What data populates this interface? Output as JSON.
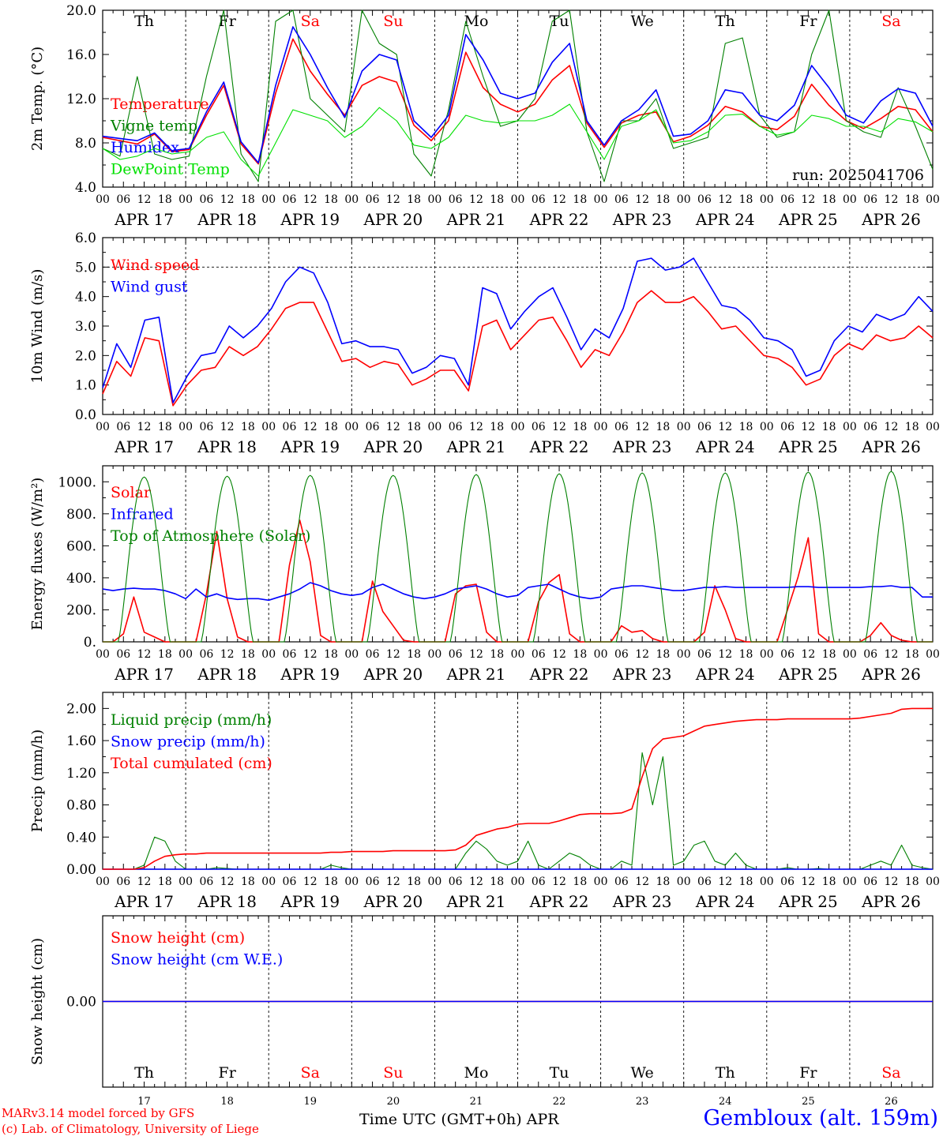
{
  "meta": {
    "run_label": "run: 2025041706",
    "model_line": "MARv3.14 model forced by GFS",
    "credit_line": "(c) Lab. of Climatology, University of Liege",
    "station": "Gembloux (alt. 159m)",
    "xaxis_label": "Time UTC (GMT+0h) APR",
    "colors": {
      "red": "#ff0000",
      "green": "#008000",
      "blue": "#0000ff",
      "lightgreen": "#00e000",
      "frame": "#000000"
    }
  },
  "days": {
    "weekday": [
      "Th",
      "Fr",
      "Sa",
      "Su",
      "Mo",
      "Tu",
      "We",
      "Th",
      "Fr",
      "Sa"
    ],
    "weekend": [
      false,
      false,
      true,
      true,
      false,
      false,
      false,
      false,
      false,
      true
    ],
    "date_label": [
      "APR 17",
      "APR 18",
      "APR 19",
      "APR 20",
      "APR 21",
      "APR 22",
      "APR 23",
      "APR 24",
      "APR 25",
      "APR 26"
    ],
    "day_number": [
      "17",
      "18",
      "19",
      "20",
      "21",
      "22",
      "23",
      "24",
      "25",
      "26"
    ],
    "hour_ticks": [
      "00",
      "06",
      "12",
      "18"
    ],
    "end_tick": "00"
  },
  "chart_data": [
    {
      "id": "temp",
      "type": "line",
      "ylabel": "2m Temp. (°C)",
      "ylim": [
        4,
        20
      ],
      "yticks": [
        4,
        8,
        12,
        16,
        20
      ],
      "ytick_labels": [
        "4.0",
        "8.0",
        "12.0",
        "16.0",
        "20.0"
      ],
      "x_hours_start": 0,
      "x_hours_end": 240,
      "x_step_hours": 6,
      "show_weekdays": true,
      "show_run": true,
      "series": [
        {
          "name": "Temperature",
          "color": "red",
          "values": [
            8.5,
            8.2,
            7.9,
            8.8,
            7.2,
            7.4,
            10.5,
            13.2,
            7.9,
            6.1,
            12.5,
            17.4,
            14.5,
            12.4,
            10.5,
            13.2,
            14.0,
            13.5,
            9.6,
            8.2,
            10.0,
            16.2,
            13.0,
            11.5,
            10.8,
            11.5,
            13.7,
            15.0,
            9.8,
            7.6,
            9.8,
            10.5,
            10.8,
            8.1,
            8.6,
            9.6,
            11.3,
            10.8,
            9.5,
            9.2,
            10.4,
            13.3,
            11.4,
            10.0,
            9.3,
            10.2,
            11.3,
            11.0,
            9.0
          ]
        },
        {
          "name": "Vigne temp",
          "color": "green",
          "values": [
            7.5,
            6.8,
            14.0,
            7.0,
            6.5,
            6.8,
            14.0,
            22.0,
            7.0,
            4.5,
            19.0,
            21.0,
            12.0,
            10.5,
            9.0,
            20.0,
            17.0,
            16.0,
            7.0,
            5.0,
            11.0,
            19.0,
            14.0,
            9.5,
            10.0,
            12.0,
            19.0,
            21.0,
            9.0,
            4.5,
            10.0,
            10.0,
            12.0,
            7.5,
            8.0,
            8.5,
            17.0,
            17.5,
            10.5,
            8.5,
            9.0,
            16.0,
            20.0,
            10.0,
            9.0,
            8.5,
            13.0,
            9.5,
            5.6
          ]
        },
        {
          "name": "Humidex",
          "color": "blue",
          "values": [
            8.6,
            8.4,
            8.2,
            8.9,
            7.3,
            7.5,
            10.8,
            13.5,
            8.1,
            6.2,
            13.2,
            18.5,
            16.0,
            13.0,
            10.3,
            14.5,
            16.0,
            15.5,
            10.0,
            8.5,
            10.5,
            17.8,
            15.5,
            12.5,
            12.0,
            12.5,
            15.3,
            17.0,
            10.0,
            7.8,
            10.0,
            11.0,
            12.8,
            8.6,
            8.8,
            10.0,
            12.8,
            12.5,
            10.5,
            10.0,
            11.4,
            15.0,
            13.0,
            10.5,
            9.8,
            11.8,
            12.9,
            12.5,
            9.5
          ]
        },
        {
          "name": "DewPoint Temp",
          "color": "lightgreen",
          "values": [
            7.5,
            6.5,
            6.8,
            7.5,
            7.0,
            7.2,
            8.5,
            9.0,
            6.5,
            5.0,
            8.0,
            11.0,
            10.5,
            10.0,
            8.5,
            9.5,
            11.2,
            10.0,
            7.8,
            7.5,
            8.5,
            10.5,
            10.0,
            9.8,
            10.0,
            10.0,
            10.5,
            11.5,
            9.0,
            6.5,
            9.5,
            10.0,
            11.0,
            8.0,
            8.2,
            9.0,
            10.5,
            10.6,
            9.5,
            8.7,
            9.0,
            10.5,
            10.2,
            9.5,
            9.5,
            9.0,
            10.2,
            9.9,
            9.0
          ]
        }
      ]
    },
    {
      "id": "wind",
      "type": "line",
      "ylabel": "10m Wind (m/s)",
      "ylim": [
        0,
        6
      ],
      "yticks": [
        0,
        1,
        2,
        3,
        4,
        5,
        6
      ],
      "ytick_labels": [
        "0.0",
        "1.0",
        "2.0",
        "3.0",
        "4.0",
        "5.0",
        "6.0"
      ],
      "ref_line": 5,
      "x_hours_start": 0,
      "x_hours_end": 240,
      "x_step_hours": 6,
      "series": [
        {
          "name": "Wind speed",
          "color": "red",
          "values": [
            0.7,
            1.8,
            1.3,
            2.6,
            2.5,
            0.3,
            1.0,
            1.5,
            1.6,
            2.3,
            2.0,
            2.3,
            2.9,
            3.6,
            3.8,
            3.8,
            2.8,
            1.8,
            1.9,
            1.6,
            1.8,
            1.7,
            1.0,
            1.2,
            1.5,
            1.5,
            0.8,
            3.0,
            3.2,
            2.2,
            2.7,
            3.2,
            3.3,
            2.5,
            1.6,
            2.2,
            2.0,
            2.8,
            3.8,
            4.2,
            3.8,
            3.8,
            4.0,
            3.5,
            2.9,
            3.0,
            2.5,
            2.0,
            1.9,
            1.6,
            1.0,
            1.2,
            2.0,
            2.4,
            2.2,
            2.7,
            2.5,
            2.6,
            3.0,
            2.6
          ]
        },
        {
          "name": "Wind gust",
          "color": "blue",
          "values": [
            0.9,
            2.4,
            1.6,
            3.2,
            3.3,
            0.4,
            1.3,
            2.0,
            2.1,
            3.0,
            2.6,
            3.0,
            3.6,
            4.5,
            5.0,
            4.8,
            3.8,
            2.4,
            2.5,
            2.3,
            2.3,
            2.2,
            1.4,
            1.6,
            2.0,
            1.9,
            1.0,
            4.3,
            4.1,
            2.9,
            3.5,
            4.0,
            4.3,
            3.3,
            2.2,
            2.9,
            2.6,
            3.6,
            5.2,
            5.3,
            4.9,
            5.0,
            5.3,
            4.5,
            3.7,
            3.6,
            3.2,
            2.6,
            2.5,
            2.2,
            1.3,
            1.5,
            2.5,
            3.0,
            2.8,
            3.4,
            3.2,
            3.4,
            4.0,
            3.5
          ]
        }
      ]
    },
    {
      "id": "energy",
      "type": "line",
      "ylabel": "Energy fluxes (W/m²)",
      "ylim": [
        0,
        1100
      ],
      "yticks": [
        0,
        200,
        400,
        600,
        800,
        1000
      ],
      "ytick_labels": [
        "0.",
        "200.",
        "400.",
        "600.",
        "800.",
        "1000."
      ],
      "x_hours_start": 0,
      "x_hours_end": 240,
      "x_step_hours": 3,
      "series": [
        {
          "name": "Solar",
          "color": "red",
          "values": [
            0,
            0,
            50,
            280,
            60,
            30,
            0,
            0,
            0,
            0,
            300,
            690,
            270,
            30,
            0,
            0,
            0,
            0,
            480,
            760,
            500,
            40,
            0,
            0,
            0,
            0,
            380,
            190,
            100,
            10,
            0,
            0,
            0,
            0,
            300,
            350,
            360,
            60,
            0,
            0,
            0,
            0,
            250,
            370,
            420,
            50,
            0,
            0,
            0,
            0,
            100,
            60,
            70,
            20,
            0,
            0,
            0,
            0,
            60,
            350,
            200,
            20,
            0,
            0,
            0,
            0,
            200,
            400,
            650,
            50,
            0,
            0,
            0,
            0,
            40,
            120,
            40,
            10,
            0,
            0,
            0
          ]
        },
        {
          "name": "Infrared",
          "color": "blue",
          "values": [
            330,
            320,
            330,
            335,
            330,
            330,
            320,
            300,
            270,
            330,
            280,
            300,
            275,
            265,
            270,
            270,
            260,
            280,
            300,
            330,
            370,
            350,
            320,
            300,
            290,
            300,
            340,
            360,
            330,
            300,
            280,
            270,
            280,
            300,
            330,
            340,
            350,
            330,
            300,
            280,
            290,
            340,
            350,
            360,
            330,
            300,
            280,
            270,
            280,
            330,
            340,
            350,
            350,
            340,
            330,
            320,
            320,
            330,
            340,
            340,
            345,
            340,
            340,
            340,
            340,
            340,
            340,
            345,
            345,
            340,
            340,
            340,
            340,
            340,
            345,
            345,
            350,
            340,
            340,
            280,
            280
          ]
        },
        {
          "name": "Top of Atmosphere (Solar)",
          "color": "green",
          "peak": [
            1030,
            1035,
            1040,
            1040,
            1045,
            1050,
            1055,
            1055,
            1060,
            1065
          ],
          "day_start_hour": 4.5,
          "day_end_hour": 19.5
        }
      ]
    },
    {
      "id": "precip",
      "type": "line",
      "ylabel": "Precip (mm/h)",
      "ylim": [
        0,
        2.2
      ],
      "yticks": [
        0,
        0.4,
        0.8,
        1.2,
        1.6,
        2.0
      ],
      "ytick_labels": [
        "0.00",
        "0.40",
        "0.80",
        "1.20",
        "1.60",
        "2.00"
      ],
      "x_hours_start": 0,
      "x_hours_end": 240,
      "x_step_hours": 3,
      "series": [
        {
          "name": "Liquid precip (mm/h)",
          "color": "green",
          "values": [
            0,
            0,
            0,
            0,
            0.05,
            0.4,
            0.35,
            0.1,
            0,
            0,
            0,
            0.02,
            0.01,
            0,
            0,
            0,
            0,
            0,
            0,
            0,
            0,
            0,
            0.05,
            0.02,
            0,
            0,
            0,
            0,
            0,
            0,
            0,
            0,
            0,
            0,
            0,
            0.2,
            0.35,
            0.25,
            0.1,
            0.05,
            0.1,
            0.35,
            0.05,
            0,
            0.1,
            0.2,
            0.15,
            0.05,
            0,
            0,
            0.1,
            0.05,
            1.45,
            0.8,
            1.4,
            0.05,
            0.1,
            0.3,
            0.35,
            0.1,
            0.05,
            0.2,
            0.05,
            0,
            0,
            0,
            0.02,
            0,
            0,
            0.01,
            0,
            0,
            0,
            0,
            0.05,
            0.1,
            0.05,
            0.3,
            0.05,
            0.02,
            0
          ]
        },
        {
          "name": "Snow precip (mm/h)",
          "color": "blue",
          "values": [
            0,
            0,
            0,
            0,
            0,
            0,
            0,
            0,
            0,
            0,
            0,
            0,
            0,
            0,
            0,
            0,
            0,
            0,
            0,
            0,
            0,
            0,
            0,
            0,
            0,
            0,
            0,
            0,
            0,
            0,
            0,
            0,
            0,
            0,
            0,
            0,
            0,
            0,
            0,
            0,
            0,
            0,
            0,
            0,
            0,
            0,
            0,
            0,
            0,
            0,
            0,
            0,
            0,
            0,
            0,
            0,
            0,
            0,
            0,
            0,
            0,
            0,
            0,
            0,
            0,
            0,
            0,
            0,
            0,
            0,
            0,
            0,
            0,
            0,
            0,
            0,
            0,
            0,
            0,
            0,
            0
          ]
        },
        {
          "name": "Total cumulated (cm)",
          "color": "red",
          "values": [
            0,
            0,
            0,
            0,
            0.02,
            0.1,
            0.16,
            0.18,
            0.19,
            0.19,
            0.2,
            0.2,
            0.2,
            0.2,
            0.2,
            0.2,
            0.2,
            0.2,
            0.2,
            0.2,
            0.2,
            0.2,
            0.21,
            0.21,
            0.22,
            0.22,
            0.22,
            0.22,
            0.23,
            0.23,
            0.23,
            0.23,
            0.23,
            0.23,
            0.24,
            0.3,
            0.42,
            0.46,
            0.5,
            0.52,
            0.56,
            0.57,
            0.57,
            0.57,
            0.6,
            0.64,
            0.68,
            0.69,
            0.69,
            0.69,
            0.7,
            0.75,
            1.15,
            1.5,
            1.62,
            1.64,
            1.66,
            1.72,
            1.78,
            1.8,
            1.82,
            1.84,
            1.85,
            1.86,
            1.86,
            1.86,
            1.87,
            1.87,
            1.87,
            1.87,
            1.87,
            1.87,
            1.87,
            1.88,
            1.9,
            1.92,
            1.94,
            1.99,
            2.0,
            2.0,
            2.0
          ]
        }
      ]
    },
    {
      "id": "snow",
      "type": "line",
      "ylabel": "Snow height (cm)",
      "ylim": [
        -1,
        1
      ],
      "yticks": [
        0
      ],
      "ytick_labels": [
        "0.00"
      ],
      "x_hours_start": 0,
      "x_hours_end": 240,
      "x_step_hours": 240,
      "show_weekdays_bottom": true,
      "series": [
        {
          "name": "Snow height (cm)",
          "color": "red",
          "values": [
            0,
            0
          ]
        },
        {
          "name": "Snow height (cm W.E.)",
          "color": "blue",
          "values": [
            0,
            0
          ]
        }
      ]
    }
  ]
}
